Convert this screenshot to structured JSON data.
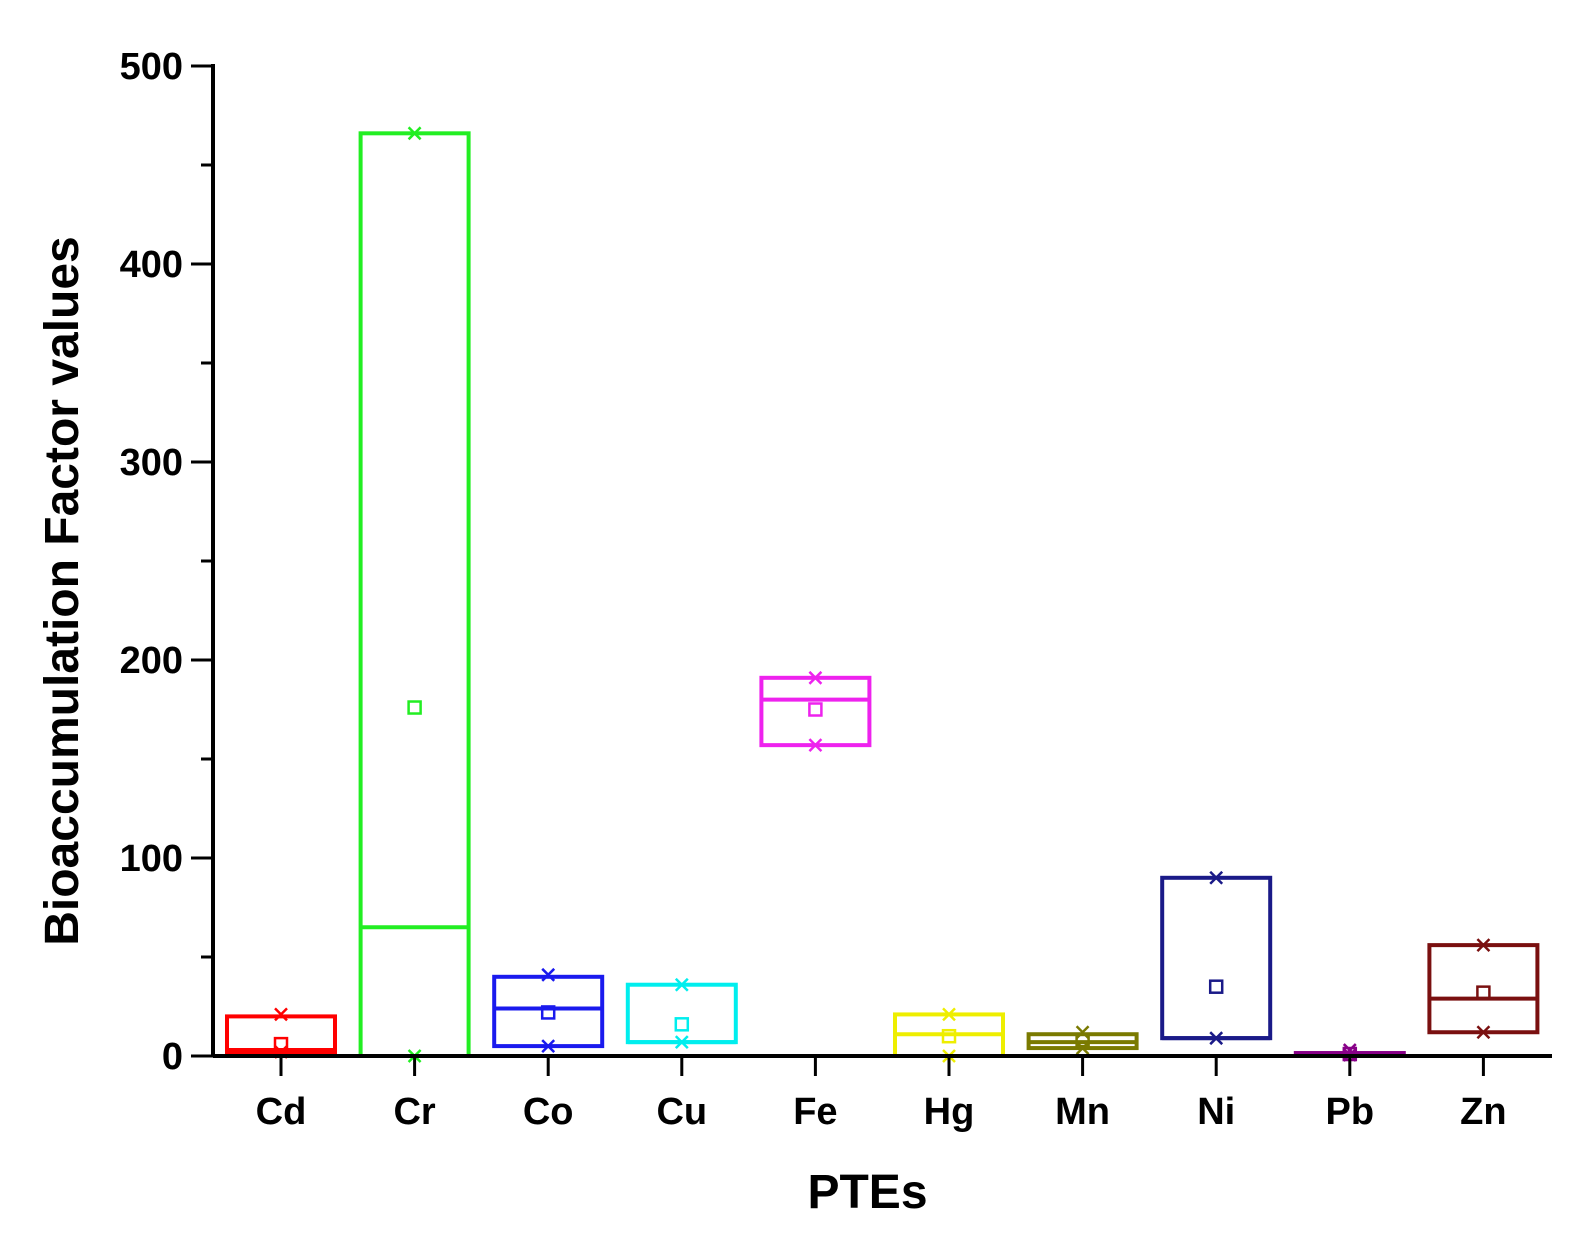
{
  "chart_data": {
    "type": "box",
    "xlabel": "PTEs",
    "ylabel": "Bioaccumulation Factor values",
    "ylim": [
      0,
      500
    ],
    "yticks": [
      0,
      100,
      200,
      300,
      400,
      500
    ],
    "yticks_minor": [
      50,
      150,
      250,
      350,
      450
    ],
    "grid": false,
    "categories": [
      "Cd",
      "Cr",
      "Co",
      "Cu",
      "Fe",
      "Hg",
      "Mn",
      "Ni",
      "Pb",
      "Zn"
    ],
    "series": [
      {
        "category": "Cd",
        "color": "#ff0000",
        "q1": 2,
        "median": 3,
        "q3": 20,
        "mean": 6,
        "min": 2,
        "max": 21
      },
      {
        "category": "Cr",
        "color": "#22ee22",
        "q1": 0,
        "median": 65,
        "q3": 466,
        "mean": 176,
        "min": 0,
        "max": 466
      },
      {
        "category": "Co",
        "color": "#1a1aee",
        "q1": 5,
        "median": 24,
        "q3": 40,
        "mean": 22,
        "min": 5,
        "max": 41
      },
      {
        "category": "Cu",
        "color": "#00eeee",
        "q1": 7,
        "median": 7,
        "q3": 36,
        "mean": 16,
        "min": 7,
        "max": 36
      },
      {
        "category": "Fe",
        "color": "#ee22ee",
        "q1": 157,
        "median": 180,
        "q3": 191,
        "mean": 175,
        "min": 157,
        "max": 191
      },
      {
        "category": "Hg",
        "color": "#eeee00",
        "q1": 0,
        "median": 11,
        "q3": 21,
        "mean": 10,
        "min": 0,
        "max": 21
      },
      {
        "category": "Mn",
        "color": "#7a7a00",
        "q1": 4,
        "median": 7,
        "q3": 11,
        "mean": 8,
        "min": 4,
        "max": 12
      },
      {
        "category": "Ni",
        "color": "#1a1a88",
        "q1": 9,
        "median": 9,
        "q3": 90,
        "mean": 35,
        "min": 9,
        "max": 90
      },
      {
        "category": "Pb",
        "color": "#880088",
        "q1": 0.5,
        "median": 1,
        "q3": 1.5,
        "mean": 1,
        "min": 0.5,
        "max": 3
      },
      {
        "category": "Zn",
        "color": "#7a1010",
        "q1": 12,
        "median": 29,
        "q3": 56,
        "mean": 32,
        "min": 12,
        "max": 56
      }
    ]
  }
}
